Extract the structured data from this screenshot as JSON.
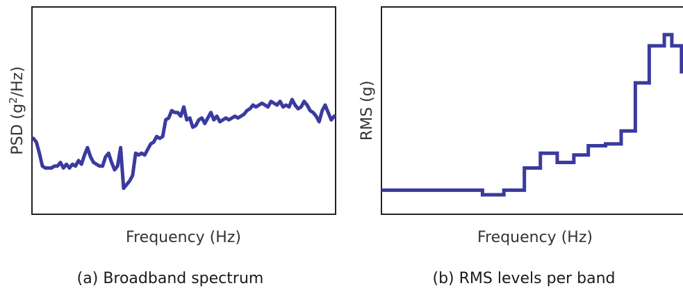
{
  "chart_data": [
    {
      "type": "line",
      "caption": "(a) Broadband spectrum",
      "xlabel": "Frequency (Hz)",
      "ylabel_pre": "PSD (g",
      "ylabel_sup": "2",
      "ylabel_post": "/Hz)",
      "xlim": [
        0,
        100
      ],
      "ylim": [
        0,
        100
      ],
      "grid": false,
      "color": "#3a3a9f",
      "x": [
        0,
        1,
        2,
        3,
        4,
        5,
        6,
        7,
        8,
        9,
        10,
        11,
        12,
        13,
        14,
        15,
        16,
        17,
        18,
        19,
        20,
        21,
        22,
        23,
        24,
        25,
        26,
        27,
        28,
        29,
        30,
        31,
        32,
        33,
        34,
        35,
        36,
        37,
        38,
        39,
        40,
        41,
        42,
        43,
        44,
        45,
        46,
        47,
        48,
        49,
        50,
        51,
        52,
        53,
        54,
        55,
        56,
        57,
        58,
        59,
        60,
        61,
        62,
        63,
        64,
        65,
        66,
        67,
        68,
        69,
        70,
        71,
        72,
        73,
        74,
        75,
        76,
        77,
        78,
        79,
        80,
        81,
        82,
        83,
        84,
        85,
        86,
        87,
        88,
        89,
        90,
        91,
        92,
        93,
        94,
        95,
        96,
        97,
        98,
        99,
        100
      ],
      "y": [
        35,
        33,
        27,
        20,
        19,
        19,
        19,
        20,
        20,
        22,
        19,
        21,
        19,
        21,
        20,
        23,
        21,
        26,
        30,
        25,
        22,
        21,
        20,
        20,
        25,
        27,
        22,
        18,
        20,
        30,
        8,
        10,
        12,
        15,
        27,
        26,
        27,
        26,
        29,
        32,
        33,
        36,
        35,
        36,
        45,
        46,
        50,
        49,
        49,
        47,
        52,
        45,
        46,
        41,
        42,
        45,
        46,
        43,
        46,
        49,
        45,
        47,
        44,
        45,
        46,
        45,
        46,
        47,
        46,
        47,
        48,
        50,
        51,
        53,
        52,
        53,
        54,
        53,
        52,
        55,
        54,
        53,
        55,
        52,
        53,
        52,
        56,
        53,
        51,
        52,
        55,
        53,
        50,
        49,
        47,
        44,
        50,
        53,
        49,
        45,
        47
      ]
    },
    {
      "type": "line",
      "step": true,
      "caption": "(b) RMS levels per band",
      "xlabel": "Frequency (Hz)",
      "ylabel": "RMS (g)",
      "xlim": [
        0,
        100
      ],
      "ylim": [
        0,
        100
      ],
      "grid": false,
      "color": "#3a3a9f",
      "x": [
        0,
        33.5,
        40.6,
        47.4,
        52.7,
        58.3,
        63.8,
        68.6,
        74.3,
        79.5,
        84.2,
        88.8,
        93.8,
        96.3,
        99.5,
        100
      ],
      "y": [
        7,
        4.5,
        7,
        19,
        27,
        22,
        26,
        31,
        32,
        39,
        65,
        85,
        91,
        85,
        71,
        79
      ]
    }
  ]
}
